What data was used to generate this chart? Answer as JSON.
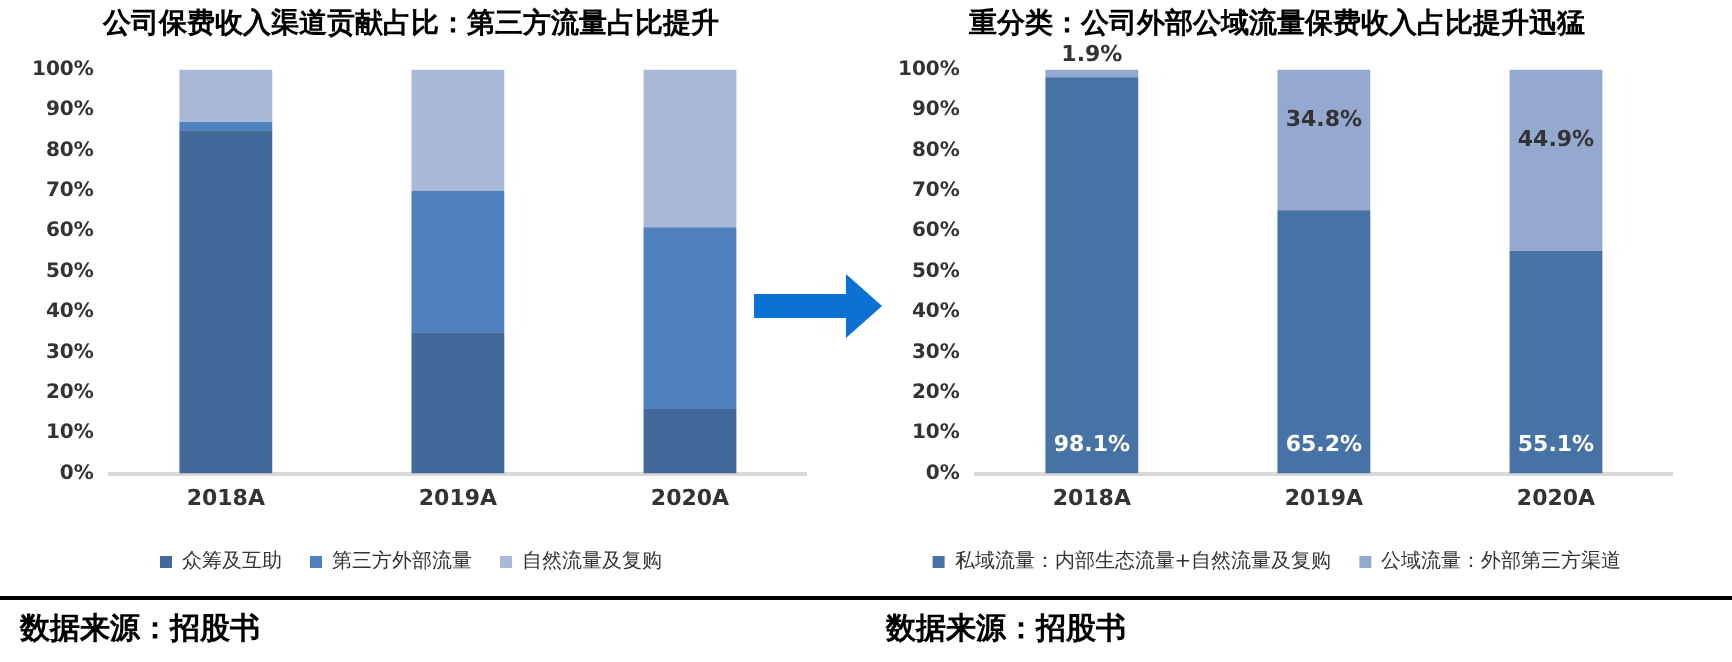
{
  "chart_data": [
    {
      "type": "bar",
      "title": "公司保费收入渠道贡献占比：第三方流量占比提升",
      "categories": [
        "2018A",
        "2019A",
        "2020A"
      ],
      "stacked": true,
      "series": [
        {
          "name": "众筹及互助",
          "color": "#41699a",
          "values": [
            85,
            35,
            16
          ]
        },
        {
          "name": "第三方外部流量",
          "color": "#4e81bd",
          "values": [
            2,
            35,
            45
          ]
        },
        {
          "name": "自然流量及复购",
          "color": "#aab9d7",
          "values": [
            13,
            30,
            39
          ]
        }
      ],
      "ylim": [
        0,
        100
      ],
      "yticks": [
        {
          "value": 0,
          "label": "0%"
        },
        {
          "value": 10,
          "label": "10%"
        },
        {
          "value": 20,
          "label": "20%"
        },
        {
          "value": 30,
          "label": "30%"
        },
        {
          "value": 40,
          "label": "40%"
        },
        {
          "value": 50,
          "label": "50%"
        },
        {
          "value": 60,
          "label": "60%"
        },
        {
          "value": 70,
          "label": "70%"
        },
        {
          "value": 80,
          "label": "80%"
        },
        {
          "value": 90,
          "label": "90%"
        },
        {
          "value": 100,
          "label": "100%"
        }
      ],
      "grid": false,
      "legend": "bottom",
      "annotations": [
        "数据来源：招股书"
      ]
    },
    {
      "type": "bar",
      "title": "重分类：公司外部公域流量保费收入占比提升迅猛",
      "categories": [
        "2018A",
        "2019A",
        "2020A"
      ],
      "stacked": true,
      "series": [
        {
          "name": "私域流量：内部生态流量+自然流量及复购",
          "color": "#4672a6",
          "values": [
            98.1,
            65.2,
            55.1
          ],
          "value_labels": [
            "98.1%",
            "65.2%",
            "55.1%"
          ]
        },
        {
          "name": "公域流量：外部第三方渠道",
          "color": "#95a9d0",
          "values": [
            1.9,
            34.8,
            44.9
          ],
          "value_labels": [
            "1.9%",
            "34.8%",
            "44.9%"
          ]
        }
      ],
      "ylim": [
        0,
        100
      ],
      "yticks": [
        {
          "value": 0,
          "label": "0%"
        },
        {
          "value": 10,
          "label": "10%"
        },
        {
          "value": 20,
          "label": "20%"
        },
        {
          "value": 30,
          "label": "30%"
        },
        {
          "value": 40,
          "label": "40%"
        },
        {
          "value": 50,
          "label": "50%"
        },
        {
          "value": 60,
          "label": "60%"
        },
        {
          "value": 70,
          "label": "70%"
        },
        {
          "value": 80,
          "label": "80%"
        },
        {
          "value": 90,
          "label": "90%"
        },
        {
          "value": 100,
          "label": "100%"
        }
      ],
      "grid": false,
      "legend": "bottom",
      "annotations": [
        "数据来源：招股书"
      ]
    }
  ]
}
